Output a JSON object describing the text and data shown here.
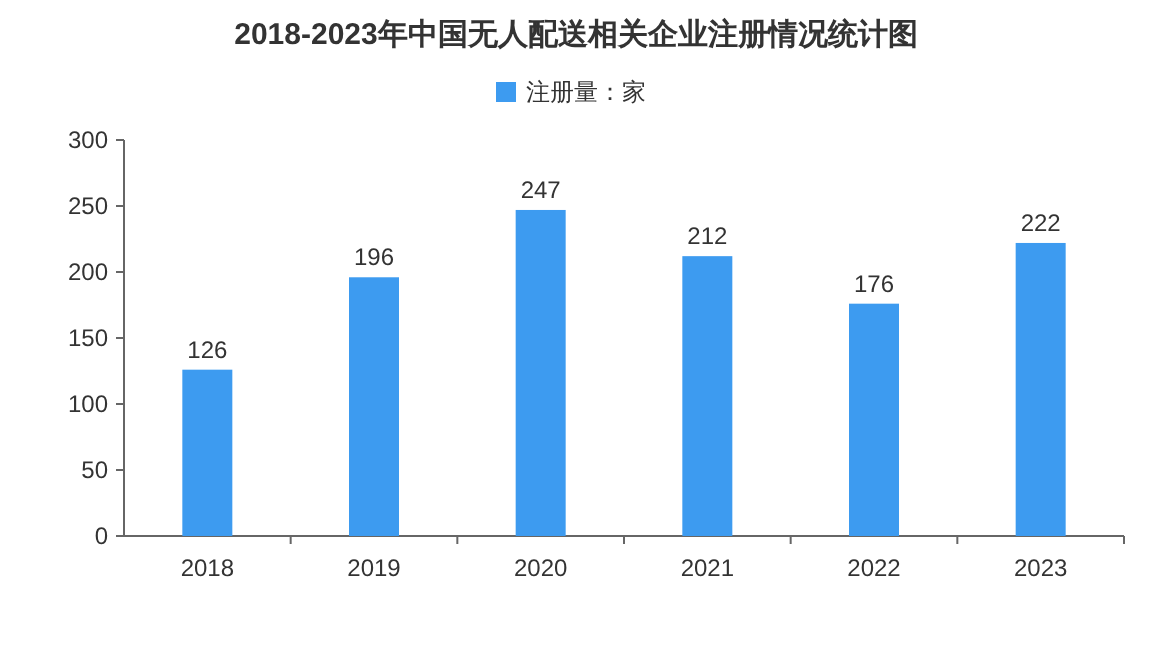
{
  "chart_data": {
    "type": "bar",
    "title": "2018-2023年中国无人配送相关企业注册情况统计图",
    "categories": [
      "2018",
      "2019",
      "2020",
      "2021",
      "2022",
      "2023"
    ],
    "series": [
      {
        "name": "注册量：家",
        "color": "#3d9bf0",
        "values": [
          126,
          196,
          247,
          212,
          176,
          222
        ]
      }
    ],
    "ylim": [
      0,
      300
    ],
    "yticks": [
      0,
      50,
      100,
      150,
      200,
      250,
      300
    ],
    "data_labels": true,
    "legend": "top",
    "grid": false
  }
}
